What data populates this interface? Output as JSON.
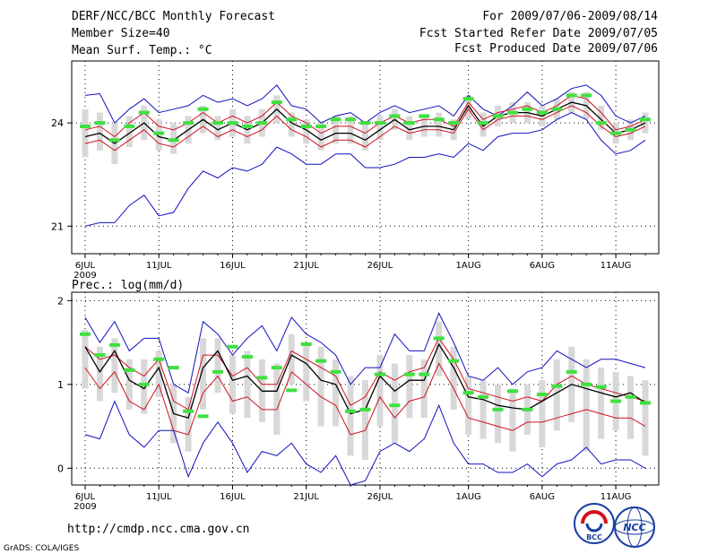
{
  "header": {
    "title": "DERF/NCC/BCC Monthly Forecast",
    "member_size": "Member Size=40",
    "fcst_period": "For 2009/07/06-2009/08/14",
    "fcst_started": "Fcst Started Refer Date 2009/07/05",
    "fcst_produced": "Fcst Produced Date 2009/07/06"
  },
  "footer": {
    "url": "http://cmdp.ncc.cma.gov.cn",
    "credit": "GrADS: COLA/IGES",
    "logo_left_text": "BCC",
    "logo_right_text": "NCC"
  },
  "colors": {
    "max_min": "#1010c0",
    "spread": "#d01020",
    "ensemble_mean": "#000000",
    "observed": "#40e040",
    "box": "#d8d8d8"
  },
  "chart_data": [
    {
      "type": "line",
      "title": "Mean Surf. Temp.: °C",
      "ylim": [
        20.2,
        25.8
      ],
      "yticks": [
        21,
        24
      ],
      "ytick_labels": [
        "21",
        "24"
      ],
      "grid": true,
      "x_ticks": [
        0,
        5,
        10,
        15,
        20,
        26,
        31,
        36
      ],
      "x_tick_labels": [
        "6JUL",
        "11JUL",
        "16JUL",
        "21JUL",
        "26JUL",
        "1AUG",
        "6AUG",
        "11AUG"
      ],
      "x_year_label": "2009",
      "x": [
        0,
        1,
        2,
        3,
        4,
        5,
        6,
        7,
        8,
        9,
        10,
        11,
        12,
        13,
        14,
        15,
        16,
        17,
        18,
        19,
        20,
        21,
        22,
        23,
        24,
        25,
        26,
        27,
        28,
        29,
        30,
        31,
        32,
        33,
        34,
        35,
        36,
        37,
        38
      ],
      "series": [
        {
          "name": "max",
          "values": [
            24.8,
            24.85,
            24.0,
            24.4,
            24.7,
            24.3,
            24.4,
            24.5,
            24.8,
            24.6,
            24.7,
            24.5,
            24.7,
            25.1,
            24.5,
            24.4,
            24.0,
            24.2,
            24.3,
            24.0,
            24.3,
            24.5,
            24.3,
            24.4,
            24.5,
            24.2,
            24.8,
            24.4,
            24.2,
            24.5,
            24.9,
            24.5,
            24.7,
            25.0,
            25.1,
            24.8,
            24.2,
            24.0,
            24.2
          ]
        },
        {
          "name": "upper",
          "values": [
            23.8,
            23.9,
            23.6,
            24.0,
            24.3,
            23.9,
            23.8,
            24.0,
            24.3,
            24.0,
            24.2,
            24.0,
            24.2,
            24.6,
            24.2,
            24.0,
            23.7,
            23.9,
            23.9,
            23.7,
            24.0,
            24.2,
            24.0,
            24.1,
            24.1,
            23.9,
            24.6,
            24.1,
            24.3,
            24.4,
            24.5,
            24.3,
            24.5,
            24.8,
            24.7,
            24.3,
            23.8,
            23.9,
            24.1
          ]
        },
        {
          "name": "ensemble_mean",
          "values": [
            23.6,
            23.7,
            23.4,
            23.7,
            24.0,
            23.6,
            23.5,
            23.8,
            24.1,
            23.8,
            24.0,
            23.8,
            24.0,
            24.4,
            24.0,
            23.8,
            23.5,
            23.7,
            23.7,
            23.5,
            23.8,
            24.1,
            23.8,
            23.9,
            23.9,
            23.8,
            24.5,
            23.9,
            24.2,
            24.3,
            24.3,
            24.2,
            24.4,
            24.6,
            24.5,
            24.1,
            23.7,
            23.8,
            24.0
          ]
        },
        {
          "name": "lower",
          "values": [
            23.4,
            23.5,
            23.2,
            23.5,
            23.8,
            23.4,
            23.3,
            23.6,
            23.9,
            23.6,
            23.8,
            23.6,
            23.8,
            24.2,
            23.8,
            23.6,
            23.3,
            23.5,
            23.5,
            23.3,
            23.6,
            23.9,
            23.7,
            23.8,
            23.8,
            23.7,
            24.4,
            23.8,
            24.1,
            24.2,
            24.2,
            24.1,
            24.3,
            24.5,
            24.3,
            23.9,
            23.6,
            23.7,
            23.9
          ]
        },
        {
          "name": "min",
          "values": [
            21.0,
            21.1,
            21.1,
            21.6,
            21.9,
            21.3,
            21.4,
            22.1,
            22.6,
            22.4,
            22.7,
            22.6,
            22.8,
            23.3,
            23.1,
            22.8,
            22.8,
            23.1,
            23.1,
            22.7,
            22.7,
            22.8,
            23.0,
            23.0,
            23.1,
            23.0,
            23.4,
            23.2,
            23.6,
            23.7,
            23.7,
            23.8,
            24.1,
            24.3,
            24.1,
            23.5,
            23.1,
            23.2,
            23.5
          ]
        },
        {
          "name": "observed",
          "values": [
            23.9,
            24.0,
            23.5,
            23.9,
            24.3,
            23.7,
            23.5,
            24.0,
            24.4,
            24.0,
            24.0,
            23.9,
            24.0,
            24.6,
            24.1,
            23.9,
            23.9,
            24.1,
            24.1,
            24.0,
            24.0,
            24.2,
            24.0,
            24.2,
            24.1,
            24.0,
            24.7,
            24.0,
            24.2,
            24.3,
            24.4,
            24.3,
            24.4,
            24.8,
            24.8,
            24.0,
            23.7,
            23.8,
            24.1
          ]
        }
      ],
      "boxes": {
        "low": [
          23.0,
          23.2,
          22.8,
          23.3,
          23.5,
          23.2,
          23.1,
          23.4,
          23.7,
          23.5,
          23.6,
          23.4,
          23.6,
          24.0,
          23.6,
          23.4,
          23.2,
          23.4,
          23.4,
          23.2,
          23.5,
          23.8,
          23.5,
          23.6,
          23.6,
          23.5,
          24.1,
          23.6,
          23.9,
          24.0,
          24.0,
          23.9,
          24.1,
          24.3,
          24.1,
          23.8,
          23.4,
          23.5,
          23.7
        ],
        "high": [
          24.4,
          24.3,
          24.0,
          24.2,
          24.5,
          24.1,
          24.0,
          24.2,
          24.5,
          24.2,
          24.4,
          24.2,
          24.4,
          24.8,
          24.3,
          24.1,
          24.0,
          24.2,
          24.2,
          24.0,
          24.2,
          24.4,
          24.2,
          24.2,
          24.3,
          24.1,
          24.8,
          24.3,
          24.5,
          24.6,
          24.6,
          24.5,
          24.7,
          24.9,
          24.9,
          24.5,
          24.0,
          24.1,
          24.3
        ]
      }
    },
    {
      "type": "line",
      "title": "Prec.: log(mm/d)",
      "ylim": [
        -0.2,
        2.1
      ],
      "yticks": [
        0,
        1,
        2
      ],
      "ytick_labels": [
        "0",
        "1",
        "2"
      ],
      "grid": true,
      "x_ticks": [
        0,
        5,
        10,
        15,
        20,
        26,
        31,
        36
      ],
      "x_tick_labels": [
        "6JUL",
        "11JUL",
        "16JUL",
        "21JUL",
        "26JUL",
        "1AUG",
        "6AUG",
        "11AUG"
      ],
      "x_year_label": "2009",
      "x": [
        0,
        1,
        2,
        3,
        4,
        5,
        6,
        7,
        8,
        9,
        10,
        11,
        12,
        13,
        14,
        15,
        16,
        17,
        18,
        19,
        20,
        21,
        22,
        23,
        24,
        25,
        26,
        27,
        28,
        29,
        30,
        31,
        32,
        33,
        34,
        35,
        36,
        37,
        38
      ],
      "series": [
        {
          "name": "max",
          "values": [
            1.8,
            1.5,
            1.75,
            1.4,
            1.55,
            1.55,
            1.0,
            0.9,
            1.75,
            1.6,
            1.35,
            1.55,
            1.7,
            1.4,
            1.8,
            1.6,
            1.5,
            1.35,
            1.0,
            1.2,
            1.2,
            1.6,
            1.4,
            1.4,
            1.85,
            1.5,
            1.1,
            1.05,
            1.2,
            1.0,
            1.15,
            1.2,
            1.4,
            1.3,
            1.2,
            1.3,
            1.3,
            1.25,
            1.2
          ]
        },
        {
          "name": "upper",
          "values": [
            1.45,
            1.3,
            1.35,
            1.2,
            1.1,
            1.3,
            0.8,
            0.7,
            1.35,
            1.35,
            1.1,
            1.2,
            1.0,
            1.0,
            1.4,
            1.3,
            1.2,
            1.1,
            0.75,
            0.85,
            1.15,
            1.05,
            1.15,
            1.2,
            1.55,
            1.3,
            0.95,
            0.9,
            0.85,
            0.8,
            0.85,
            0.8,
            1.0,
            1.1,
            1.0,
            0.95,
            0.9,
            0.85,
            0.8
          ]
        },
        {
          "name": "ensemble_mean",
          "values": [
            1.45,
            1.15,
            1.4,
            1.05,
            0.95,
            1.2,
            0.65,
            0.6,
            1.2,
            1.4,
            1.05,
            1.1,
            0.92,
            0.92,
            1.35,
            1.25,
            1.05,
            1.0,
            0.65,
            0.7,
            1.1,
            0.92,
            1.05,
            1.05,
            1.48,
            1.2,
            0.85,
            0.82,
            0.75,
            0.72,
            0.7,
            0.8,
            0.9,
            1.0,
            0.95,
            0.9,
            0.85,
            0.9,
            0.78
          ]
        },
        {
          "name": "lower",
          "values": [
            1.2,
            0.95,
            1.15,
            0.8,
            0.7,
            1.0,
            0.45,
            0.4,
            0.9,
            1.1,
            0.8,
            0.85,
            0.7,
            0.7,
            1.15,
            1.0,
            0.85,
            0.75,
            0.4,
            0.45,
            0.85,
            0.6,
            0.8,
            0.85,
            1.25,
            0.95,
            0.6,
            0.55,
            0.5,
            0.45,
            0.55,
            0.55,
            0.6,
            0.65,
            0.7,
            0.65,
            0.6,
            0.6,
            0.5
          ]
        },
        {
          "name": "min",
          "values": [
            0.4,
            0.35,
            0.8,
            0.4,
            0.25,
            0.45,
            0.45,
            -0.1,
            0.3,
            0.55,
            0.3,
            -0.05,
            0.2,
            0.15,
            0.3,
            0.05,
            -0.05,
            0.15,
            -0.2,
            -0.15,
            0.2,
            0.3,
            0.2,
            0.35,
            0.75,
            0.3,
            0.05,
            0.05,
            -0.05,
            -0.05,
            0.05,
            -0.1,
            0.05,
            0.1,
            0.25,
            0.05,
            0.1,
            0.1,
            0.0
          ]
        },
        {
          "name": "observed",
          "values": [
            1.6,
            1.35,
            1.47,
            1.17,
            1.0,
            1.3,
            1.2,
            0.68,
            0.62,
            1.15,
            1.45,
            1.33,
            1.08,
            1.2,
            0.93,
            1.48,
            1.28,
            1.15,
            0.68,
            0.7,
            1.12,
            0.75,
            1.12,
            1.12,
            1.55,
            1.28,
            0.9,
            0.85,
            0.7,
            0.92,
            0.7,
            0.88,
            0.98,
            1.15,
            1.0,
            0.97,
            0.8,
            0.85,
            0.78
          ]
        }
      ],
      "boxes": {
        "low": [
          0.95,
          0.8,
          0.9,
          0.7,
          0.65,
          0.85,
          0.3,
          0.2,
          0.7,
          0.9,
          0.65,
          0.6,
          0.55,
          0.4,
          1.0,
          0.8,
          0.5,
          0.5,
          0.15,
          0.1,
          0.5,
          0.3,
          0.6,
          0.6,
          1.1,
          0.7,
          0.4,
          0.35,
          0.3,
          0.2,
          0.4,
          0.25,
          0.45,
          0.55,
          0.2,
          0.35,
          0.45,
          0.35,
          0.15
        ],
        "high": [
          1.65,
          1.45,
          1.55,
          1.3,
          1.3,
          1.4,
          1.0,
          0.85,
          1.55,
          1.55,
          1.35,
          1.4,
          1.3,
          1.25,
          1.6,
          1.5,
          1.45,
          1.3,
          1.1,
          1.05,
          1.35,
          1.25,
          1.35,
          1.3,
          1.75,
          1.45,
          1.1,
          1.05,
          1.0,
          0.95,
          1.0,
          1.05,
          1.3,
          1.45,
          1.3,
          1.2,
          1.15,
          1.1,
          1.05
        ]
      }
    }
  ]
}
